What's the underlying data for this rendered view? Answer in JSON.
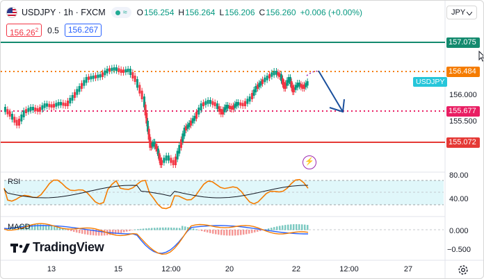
{
  "header": {
    "symbol": "USDJPY · 1h · FXCM",
    "approx": "≈",
    "ohlc": {
      "o_label": "O",
      "o_val": "156.254",
      "h_label": "H",
      "h_val": "156.264",
      "l_label": "L",
      "l_val": "156.206",
      "c_label": "C",
      "c_val": "156.260",
      "change": "+0.006 (+0.00%)"
    },
    "sell_price_main": "156.26",
    "sell_price_sup": "2",
    "spread": "0.5",
    "buy_price": "156.267"
  },
  "currency_select": "JPY",
  "icons": {
    "flag": "us-japan-flag-icon",
    "status": "market-status-dots-icon",
    "cursor": "mouse-cursor-icon",
    "lightning": "lightning-icon",
    "settings": "gear-icon",
    "logo": "tradingview-logo-icon"
  },
  "price_labels": {
    "green_line": "157.075",
    "orange_line": "156.484",
    "pink_line": "155.677",
    "red_line": "155.072",
    "current_tag": "USDJPY"
  },
  "price_axis": {
    "p1": "156.000",
    "p2": "155.500"
  },
  "rsi": {
    "label": "RSI",
    "tick1": "80.00",
    "tick2": "40.00"
  },
  "macd": {
    "label": "MACD",
    "tick1": "0.000",
    "tick2": "−0.500"
  },
  "time_axis": [
    "13",
    "15",
    "12:00",
    "20",
    "22",
    "12:00",
    "27"
  ],
  "logo_text": "TradingView",
  "colors": {
    "up": "#089981",
    "down": "#f23645",
    "green_line": "#138a6e",
    "orange_line": "#f57c00",
    "pink_line": "#e91e63",
    "red_line": "#e53935",
    "arrow": "#1a4f9c",
    "rsi": "#7e57c2"
  }
}
